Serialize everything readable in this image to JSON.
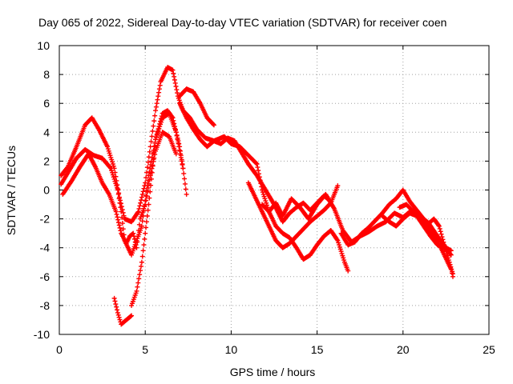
{
  "chart_data": {
    "type": "scatter",
    "title": "Day 065 of 2022, Sidereal Day-to-day VTEC variation (SDTVAR) for receiver coen",
    "xlabel": "GPS time / hours",
    "ylabel": "SDTVAR / TECUs",
    "xlim": [
      0,
      25
    ],
    "ylim": [
      -10,
      10
    ],
    "xticks": [
      0,
      5,
      10,
      15,
      20,
      25
    ],
    "yticks": [
      -10,
      -8,
      -6,
      -4,
      -2,
      0,
      2,
      4,
      6,
      8,
      10
    ],
    "grid": true,
    "marker": "+",
    "color": "#ff0000",
    "series": [
      {
        "name": "track-1",
        "points": [
          [
            0.1,
            1.0
          ],
          [
            0.5,
            1.6
          ],
          [
            1.0,
            3.0
          ],
          [
            1.5,
            4.5
          ],
          [
            1.9,
            5.0
          ],
          [
            2.3,
            4.2
          ],
          [
            2.8,
            3.0
          ],
          [
            3.2,
            1.5
          ],
          [
            3.5,
            -0.5
          ],
          [
            3.8,
            -2.0
          ],
          [
            4.2,
            -2.2
          ],
          [
            4.6,
            -1.5
          ],
          [
            5.0,
            0.5
          ],
          [
            5.3,
            3.0
          ],
          [
            5.6,
            5.5
          ],
          [
            5.9,
            7.5
          ],
          [
            6.3,
            8.5
          ],
          [
            6.6,
            8.3
          ],
          [
            6.9,
            6.5
          ],
          [
            7.2,
            5.5
          ],
          [
            7.6,
            5.0
          ],
          [
            8.0,
            4.2
          ],
          [
            8.5,
            3.6
          ],
          [
            9.0,
            3.4
          ],
          [
            9.6,
            3.7
          ],
          [
            10.0,
            3.2
          ],
          [
            10.5,
            3.0
          ],
          [
            11.0,
            2.4
          ],
          [
            11.5,
            1.8
          ],
          [
            11.8,
            0.0
          ],
          [
            12.2,
            -1.5
          ],
          [
            12.6,
            -0.9
          ],
          [
            13.0,
            -1.8
          ],
          [
            13.5,
            -0.6
          ],
          [
            14.0,
            -1.2
          ],
          [
            14.5,
            -2.0
          ],
          [
            15.0,
            -1.0
          ],
          [
            15.5,
            -0.3
          ],
          [
            16.0,
            -1.3
          ],
          [
            16.5,
            -2.8
          ],
          [
            17.0,
            -3.6
          ],
          [
            17.5,
            -3.2
          ],
          [
            18.0,
            -2.9
          ],
          [
            18.5,
            -2.5
          ],
          [
            19.0,
            -2.2
          ],
          [
            19.5,
            -1.6
          ],
          [
            20.0,
            -1.9
          ],
          [
            20.5,
            -1.4
          ],
          [
            21.0,
            -1.8
          ],
          [
            21.5,
            -2.3
          ],
          [
            22.0,
            -3.2
          ],
          [
            22.5,
            -4.0
          ],
          [
            22.8,
            -4.2
          ]
        ]
      },
      {
        "name": "track-2",
        "points": [
          [
            0.1,
            0.4
          ],
          [
            0.5,
            1.2
          ],
          [
            1.0,
            2.2
          ],
          [
            1.5,
            2.8
          ],
          [
            2.0,
            2.4
          ],
          [
            2.5,
            2.2
          ],
          [
            3.0,
            1.5
          ],
          [
            3.4,
            0.0
          ],
          [
            3.6,
            -1.5
          ],
          [
            3.8,
            -3.5
          ],
          [
            4.2,
            -4.5
          ],
          [
            4.5,
            -3.5
          ],
          [
            4.8,
            -2.5
          ],
          [
            5.2,
            1.0
          ],
          [
            5.6,
            3.5
          ],
          [
            6.0,
            5.0
          ],
          [
            6.4,
            5.3
          ],
          [
            6.8,
            4.0
          ],
          [
            7.2,
            1.5
          ],
          [
            7.4,
            -0.3
          ]
        ]
      },
      {
        "name": "track-3",
        "points": [
          [
            0.2,
            -0.3
          ],
          [
            0.7,
            0.6
          ],
          [
            1.2,
            1.6
          ],
          [
            1.7,
            2.5
          ],
          [
            2.1,
            1.6
          ],
          [
            2.5,
            0.5
          ],
          [
            2.9,
            -0.3
          ],
          [
            3.3,
            -1.5
          ],
          [
            3.6,
            -3.0
          ],
          [
            3.9,
            -3.7
          ],
          [
            4.1,
            -3.2
          ],
          [
            4.3,
            -3.0
          ],
          [
            4.5,
            -4.0
          ],
          [
            4.7,
            -2.0
          ],
          [
            5.0,
            -1.0
          ],
          [
            5.3,
            1.0
          ],
          [
            5.6,
            2.7
          ],
          [
            6.0,
            4.0
          ],
          [
            6.4,
            3.7
          ],
          [
            6.8,
            2.5
          ]
        ]
      },
      {
        "name": "track-4",
        "points": [
          [
            3.2,
            -7.5
          ],
          [
            3.4,
            -8.5
          ],
          [
            3.6,
            -9.3
          ],
          [
            4.0,
            -8.9
          ],
          [
            4.2,
            -8.7
          ]
        ]
      },
      {
        "name": "track-5",
        "points": [
          [
            4.2,
            -8.0
          ],
          [
            4.5,
            -7.0
          ],
          [
            4.8,
            -5.0
          ],
          [
            5.0,
            -3.0
          ],
          [
            5.2,
            -1.0
          ],
          [
            5.4,
            1.2
          ],
          [
            5.6,
            3.5
          ],
          [
            6.0,
            5.3
          ],
          [
            6.3,
            5.5
          ],
          [
            6.6,
            5.0
          ],
          [
            7.0,
            3.0
          ],
          [
            7.2,
            1.5
          ]
        ]
      },
      {
        "name": "track-6",
        "points": [
          [
            7.0,
            6.5
          ],
          [
            7.4,
            7.0
          ],
          [
            7.8,
            6.8
          ],
          [
            8.2,
            6.0
          ],
          [
            8.6,
            5.0
          ],
          [
            9.0,
            4.5
          ]
        ]
      },
      {
        "name": "track-7",
        "points": [
          [
            7.0,
            6.0
          ],
          [
            7.4,
            5.0
          ],
          [
            7.8,
            4.2
          ],
          [
            8.2,
            3.5
          ],
          [
            8.6,
            3.0
          ],
          [
            9.0,
            3.4
          ],
          [
            9.4,
            3.2
          ],
          [
            9.8,
            3.6
          ],
          [
            10.2,
            3.4
          ],
          [
            10.6,
            2.6
          ],
          [
            11.0,
            1.8
          ],
          [
            11.5,
            1.0
          ],
          [
            12.0,
            0.0
          ],
          [
            12.5,
            -1.0
          ],
          [
            13.0,
            -2.2
          ],
          [
            13.4,
            -1.6
          ],
          [
            13.8,
            -1.2
          ],
          [
            14.2,
            -0.9
          ],
          [
            14.6,
            -1.4
          ],
          [
            15.0,
            -0.9
          ],
          [
            15.4,
            -0.4
          ],
          [
            15.8,
            -0.8
          ]
        ]
      },
      {
        "name": "track-8",
        "points": [
          [
            11.0,
            0.5
          ],
          [
            11.4,
            -0.5
          ],
          [
            11.8,
            -1.5
          ],
          [
            12.2,
            -2.5
          ],
          [
            12.6,
            -3.5
          ],
          [
            13.0,
            -4.0
          ],
          [
            13.4,
            -3.7
          ],
          [
            13.8,
            -3.2
          ],
          [
            14.2,
            -2.7
          ],
          [
            14.6,
            -2.2
          ],
          [
            15.0,
            -1.8
          ],
          [
            15.4,
            -1.4
          ],
          [
            15.8,
            -0.9
          ],
          [
            16.2,
            0.3
          ]
        ]
      },
      {
        "name": "track-9",
        "points": [
          [
            11.8,
            -1.0
          ],
          [
            12.2,
            -1.5
          ],
          [
            12.6,
            -2.5
          ],
          [
            13.0,
            -3.0
          ],
          [
            13.4,
            -3.3
          ],
          [
            13.8,
            -4.0
          ],
          [
            14.2,
            -4.8
          ],
          [
            14.6,
            -4.5
          ],
          [
            15.0,
            -3.8
          ],
          [
            15.4,
            -3.2
          ],
          [
            15.8,
            -2.8
          ],
          [
            16.2,
            -3.5
          ],
          [
            16.6,
            -5.0
          ],
          [
            16.8,
            -5.6
          ]
        ]
      },
      {
        "name": "track-10",
        "points": [
          [
            16.4,
            -3.0
          ],
          [
            16.8,
            -3.8
          ],
          [
            17.2,
            -3.6
          ],
          [
            17.6,
            -3.0
          ],
          [
            18.0,
            -2.6
          ],
          [
            18.4,
            -2.1
          ],
          [
            18.8,
            -1.6
          ],
          [
            19.2,
            -1.0
          ],
          [
            19.6,
            -0.6
          ],
          [
            20.0,
            0.0
          ],
          [
            20.4,
            -0.8
          ],
          [
            20.8,
            -1.4
          ],
          [
            21.2,
            -2.0
          ],
          [
            21.6,
            -2.9
          ],
          [
            22.0,
            -3.5
          ],
          [
            22.4,
            -4.5
          ],
          [
            22.8,
            -5.5
          ],
          [
            22.9,
            -6.0
          ]
        ]
      },
      {
        "name": "track-11",
        "points": [
          [
            18.8,
            -1.8
          ],
          [
            19.2,
            -2.2
          ],
          [
            19.6,
            -2.5
          ],
          [
            20.0,
            -2.0
          ],
          [
            20.4,
            -1.6
          ],
          [
            20.8,
            -1.8
          ],
          [
            21.2,
            -2.5
          ],
          [
            21.6,
            -3.2
          ],
          [
            22.0,
            -3.8
          ],
          [
            22.4,
            -4.0
          ],
          [
            22.8,
            -4.5
          ]
        ]
      },
      {
        "name": "track-12",
        "points": [
          [
            19.8,
            -1.2
          ],
          [
            20.2,
            -1.0
          ],
          [
            20.6,
            -1.5
          ],
          [
            21.0,
            -2.0
          ],
          [
            21.4,
            -2.4
          ],
          [
            21.8,
            -2.0
          ],
          [
            22.1,
            -2.5
          ],
          [
            22.4,
            -3.8
          ],
          [
            22.7,
            -5.0
          ],
          [
            22.9,
            -5.8
          ]
        ]
      }
    ]
  }
}
